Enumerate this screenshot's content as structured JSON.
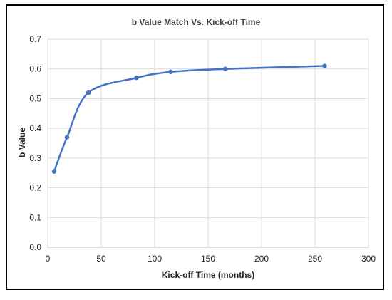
{
  "chart_data": {
    "type": "line",
    "title": "b Value Match Vs. Kick-off Time",
    "xlabel": "Kick-off Time (months)",
    "ylabel": "b Value",
    "xlim": [
      0,
      300
    ],
    "ylim": [
      0,
      0.7
    ],
    "x_ticks": [
      "0",
      "50",
      "100",
      "150",
      "200",
      "250",
      "300"
    ],
    "y_ticks": [
      "0.0",
      "0.1",
      "0.2",
      "0.3",
      "0.4",
      "0.5",
      "0.6",
      "0.7"
    ],
    "grid": true,
    "smooth": true,
    "series": [
      {
        "color": "#4472c4",
        "x": [
          6,
          18,
          38,
          83,
          115,
          166,
          259
        ],
        "y": [
          0.255,
          0.37,
          0.52,
          0.57,
          0.59,
          0.6,
          0.61
        ]
      }
    ]
  }
}
